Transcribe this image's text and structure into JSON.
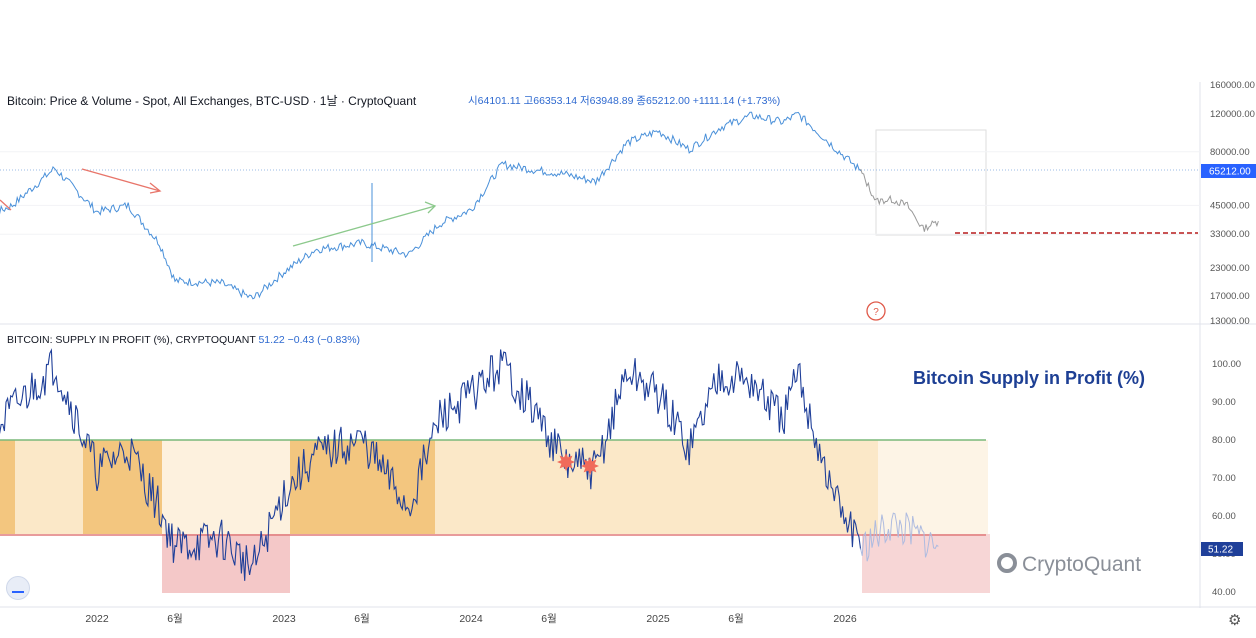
{
  "header": {
    "price_title": "Bitcoin: Price & Volume - Spot, All Exchanges, BTC-USD · 1날 · CryptoQuant",
    "ohlc": "시64101.11  고66353.14  저63948.89  종65212.00  +1111.14 (+1.73%)",
    "spp_title": "BITCOIN: SUPPLY IN PROFIT (%), CRYPTOQUANT",
    "spp_values": "51.22  −0.43 (−0.83%)"
  },
  "overlay_title": "Bitcoin Supply in Profit (%)",
  "watermark": "CryptoQuant",
  "colors": {
    "price_line": "#4a90d9",
    "projection_line": "#999999",
    "spp_line": "#1f3f99",
    "green_line": "#7ab87a",
    "red_line": "#e07a7a",
    "dark_band": "#f3c67f",
    "light_band": "#fbe8c8",
    "pink_band": "#f4c8c8",
    "support_dash": "#b71c1c"
  },
  "chart_data": [
    {
      "type": "line",
      "title": "Bitcoin: Price & Volume - Spot, All Exchanges, BTC-USD",
      "scale": "log",
      "y_ticks": [
        "160000.00",
        "120000.00",
        "80000.00",
        "45000.00",
        "33000.00",
        "23000.00",
        "17000.00",
        "13000.00"
      ],
      "current_value_label": "65212.00",
      "x_ticks": [
        "2022",
        "6월",
        "2023",
        "6월",
        "2024",
        "6월",
        "2025",
        "6월",
        "2026"
      ],
      "series": [
        {
          "x": [
            "2021-06",
            "2021-09",
            "2021-11",
            "2022-01",
            "2022-03",
            "2022-05",
            "2022-06",
            "2022-09",
            "2022-11",
            "2023-01",
            "2023-03",
            "2023-06",
            "2023-09",
            "2023-11",
            "2024-01",
            "2024-03",
            "2024-05",
            "2024-07",
            "2024-09",
            "2024-11",
            "2025-01",
            "2025-03",
            "2025-05",
            "2025-07",
            "2025-09",
            "2025-10",
            "2025-12",
            "2026-02"
          ],
          "values": [
            33000,
            45000,
            67000,
            42000,
            45000,
            30000,
            20000,
            19500,
            16500,
            22000,
            28000,
            30000,
            26500,
            37000,
            43000,
            70000,
            66000,
            63000,
            58000,
            88000,
            100000,
            82000,
            104000,
            118000,
            110000,
            120000,
            88000,
            65212
          ]
        },
        {
          "x": [
            "2026-02",
            "2026-03",
            "2026-04",
            "2026-05",
            "2026-06",
            "2026-07"
          ],
          "values": [
            65212,
            47000,
            48000,
            45000,
            35000,
            38000
          ]
        }
      ],
      "annotations": {
        "support_level": 33000
      }
    },
    {
      "type": "line",
      "title": "BITCOIN: SUPPLY IN PROFIT (%), CRYPTOQUANT",
      "y_ticks": [
        "100.00",
        "90.00",
        "80.00",
        "70.00",
        "60.00",
        "50.00",
        "40.00"
      ],
      "ylim": [
        38,
        102
      ],
      "current_value_label": "51.22",
      "reference_lines": [
        80,
        55
      ],
      "series": [
        {
          "x": [
            "2021-06",
            "2021-09",
            "2021-11",
            "2022-01",
            "2022-03",
            "2022-05",
            "2022-06",
            "2022-09",
            "2022-11",
            "2023-01",
            "2023-03",
            "2023-06",
            "2023-09",
            "2023-11",
            "2024-01",
            "2024-03",
            "2024-05",
            "2024-07",
            "2024-09",
            "2024-11",
            "2025-01",
            "2025-03",
            "2025-05",
            "2025-07",
            "2025-09",
            "2025-10",
            "2025-12",
            "2026-02"
          ],
          "values": [
            68,
            88,
            100,
            72,
            78,
            62,
            52,
            54,
            46,
            66,
            76,
            80,
            62,
            86,
            92,
            100,
            88,
            74,
            72,
            98,
            92,
            78,
            98,
            95,
            85,
            97,
            68,
            51.22
          ]
        },
        {
          "x": [
            "2026-02",
            "2026-04",
            "2026-07"
          ],
          "values": [
            51.22,
            58,
            52
          ]
        }
      ]
    }
  ]
}
